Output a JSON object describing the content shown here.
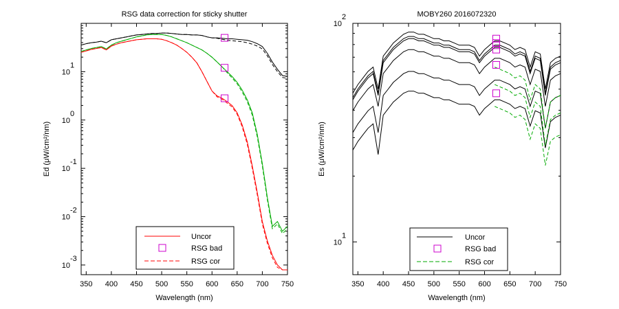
{
  "chart_data": [
    {
      "type": "line",
      "title": "RSG data correction for sticky shutter",
      "xlabel": "Wavelength (nm)",
      "ylabel": "Ed (μW/cm²/nm)",
      "xlim": [
        340,
        750
      ],
      "ylim_log10": [
        -3.2,
        2
      ],
      "y_scale": "log",
      "x_ticks": [
        "350",
        "400",
        "450",
        "500",
        "550",
        "600",
        "650",
        "700",
        "750"
      ],
      "y_tick_labels": [
        {
          "base": "10",
          "exp": "1"
        },
        {
          "base": "10",
          "exp": "0"
        },
        {
          "base": "10",
          "exp": "-1"
        },
        {
          "base": "10",
          "exp": "-2"
        },
        {
          "base": "10",
          "exp": "-3"
        }
      ],
      "legend": {
        "placement": "bottom-center",
        "entries": [
          {
            "label": "Uncor",
            "style": "solid",
            "color": "#ff0000"
          },
          {
            "label": "RSG bad",
            "style": "marker-square",
            "color": "#cc00cc"
          },
          {
            "label": "RSG cor",
            "style": "dashed",
            "color": "#ff0000"
          }
        ]
      },
      "x": [
        340,
        350,
        360,
        370,
        380,
        390,
        400,
        410,
        420,
        430,
        440,
        450,
        460,
        470,
        480,
        490,
        500,
        510,
        520,
        530,
        540,
        550,
        560,
        570,
        580,
        590,
        600,
        610,
        620,
        630,
        640,
        650,
        660,
        670,
        680,
        690,
        700,
        710,
        720,
        730,
        740,
        750
      ],
      "series": [
        {
          "color": "#000000",
          "style": "solid",
          "log10_values": [
            1.55,
            1.58,
            1.6,
            1.61,
            1.63,
            1.6,
            1.66,
            1.68,
            1.7,
            1.72,
            1.74,
            1.76,
            1.77,
            1.78,
            1.79,
            1.79,
            1.8,
            1.8,
            1.79,
            1.78,
            1.77,
            1.77,
            1.76,
            1.76,
            1.75,
            1.72,
            1.7,
            1.7,
            1.69,
            1.68,
            1.68,
            1.67,
            1.66,
            1.65,
            1.62,
            1.58,
            1.52,
            1.38,
            1.2,
            1.05,
            0.92,
            0.9
          ]
        },
        {
          "color": "#000000",
          "style": "dashed",
          "log10_values": [
            1.55,
            1.58,
            1.6,
            1.61,
            1.63,
            1.6,
            1.66,
            1.68,
            1.7,
            1.72,
            1.74,
            1.76,
            1.77,
            1.78,
            1.79,
            1.79,
            1.8,
            1.8,
            1.79,
            1.78,
            1.77,
            1.77,
            1.76,
            1.76,
            1.75,
            1.72,
            1.7,
            1.69,
            1.67,
            1.65,
            1.64,
            1.63,
            1.62,
            1.6,
            1.57,
            1.53,
            1.47,
            1.33,
            1.15,
            1.0,
            0.88,
            0.86
          ]
        },
        {
          "color": "#00aa00",
          "style": "solid",
          "log10_values": [
            1.42,
            1.45,
            1.48,
            1.5,
            1.52,
            1.47,
            1.55,
            1.6,
            1.63,
            1.66,
            1.69,
            1.72,
            1.74,
            1.76,
            1.77,
            1.77,
            1.77,
            1.75,
            1.72,
            1.68,
            1.64,
            1.6,
            1.55,
            1.5,
            1.45,
            1.38,
            1.3,
            1.2,
            1.1,
            1.0,
            0.9,
            0.78,
            0.62,
            0.42,
            0.15,
            -0.3,
            -0.9,
            -1.6,
            -2.2,
            -2.1,
            -2.3,
            -2.2
          ]
        },
        {
          "color": "#00aa00",
          "style": "dashed",
          "log10_values": [
            1.42,
            1.45,
            1.48,
            1.5,
            1.52,
            1.47,
            1.55,
            1.6,
            1.63,
            1.66,
            1.69,
            1.72,
            1.74,
            1.76,
            1.77,
            1.77,
            1.77,
            1.75,
            1.72,
            1.68,
            1.64,
            1.6,
            1.55,
            1.5,
            1.45,
            1.38,
            1.3,
            1.2,
            1.1,
            0.98,
            0.87,
            0.75,
            0.58,
            0.38,
            0.1,
            -0.35,
            -0.95,
            -1.65,
            -2.25,
            -2.15,
            -2.35,
            -2.25
          ]
        },
        {
          "color": "#ff0000",
          "style": "solid",
          "log10_values": [
            1.4,
            1.43,
            1.46,
            1.48,
            1.5,
            1.45,
            1.53,
            1.57,
            1.6,
            1.62,
            1.64,
            1.66,
            1.67,
            1.68,
            1.68,
            1.68,
            1.67,
            1.64,
            1.6,
            1.55,
            1.48,
            1.4,
            1.3,
            1.18,
            1.0,
            0.8,
            0.6,
            0.5,
            0.45,
            0.38,
            0.3,
            0.15,
            -0.1,
            -0.45,
            -0.95,
            -1.5,
            -2.1,
            -2.5,
            -2.8,
            -3.0,
            -3.1,
            -3.1
          ]
        },
        {
          "color": "#ff0000",
          "style": "dashed",
          "log10_values": [
            1.4,
            1.43,
            1.46,
            1.48,
            1.5,
            1.45,
            1.53,
            1.57,
            1.6,
            1.62,
            1.64,
            1.66,
            1.67,
            1.68,
            1.68,
            1.68,
            1.67,
            1.64,
            1.6,
            1.55,
            1.48,
            1.4,
            1.3,
            1.18,
            1.0,
            0.8,
            0.6,
            0.48,
            0.43,
            0.35,
            0.27,
            0.12,
            -0.14,
            -0.5,
            -1.0,
            -1.55,
            -2.15,
            -2.55,
            -2.85,
            -3.05,
            -3.1,
            -3.1
          ]
        }
      ],
      "markers": [
        {
          "x": 625,
          "log10_y": 1.7
        },
        {
          "x": 625,
          "log10_y": 1.08
        },
        {
          "x": 625,
          "log10_y": 0.45
        }
      ]
    },
    {
      "type": "line",
      "title": "MOBY260  2016072320",
      "xlabel": "Wavelength (nm)",
      "ylabel": "Es (μW/cm²/nm)",
      "xlim": [
        340,
        750
      ],
      "ylim_log10": [
        0.85,
        2
      ],
      "y_scale": "log",
      "x_ticks": [
        "350",
        "400",
        "450",
        "500",
        "550",
        "600",
        "650",
        "700",
        "750"
      ],
      "y_tick_labels": [
        {
          "base": "10",
          "exp": "2"
        },
        {
          "base": "10",
          "exp": "1"
        }
      ],
      "legend": {
        "placement": "bottom-center",
        "entries": [
          {
            "label": "Uncor",
            "style": "solid",
            "color": "#000000"
          },
          {
            "label": "RSG bad",
            "style": "marker-square",
            "color": "#cc00cc"
          },
          {
            "label": "RSG cor",
            "style": "dashed",
            "color": "#00aa00"
          }
        ]
      },
      "x": [
        340,
        350,
        360,
        370,
        380,
        390,
        400,
        410,
        420,
        430,
        440,
        450,
        460,
        470,
        480,
        490,
        500,
        510,
        520,
        530,
        540,
        550,
        560,
        570,
        580,
        590,
        600,
        610,
        620,
        630,
        640,
        650,
        660,
        670,
        680,
        690,
        700,
        710,
        720,
        730,
        740,
        750
      ],
      "series": [
        {
          "color": "#000000",
          "style": "solid",
          "log10_values": [
            1.68,
            1.72,
            1.75,
            1.78,
            1.8,
            1.7,
            1.85,
            1.88,
            1.91,
            1.93,
            1.95,
            1.96,
            1.96,
            1.95,
            1.95,
            1.94,
            1.93,
            1.93,
            1.92,
            1.92,
            1.91,
            1.9,
            1.9,
            1.9,
            1.89,
            1.85,
            1.88,
            1.9,
            1.92,
            1.92,
            1.91,
            1.9,
            1.88,
            1.89,
            1.88,
            1.8,
            1.87,
            1.86,
            1.7,
            1.82,
            1.84,
            1.85
          ]
        },
        {
          "color": "#000000",
          "style": "solid",
          "log10_values": [
            1.66,
            1.7,
            1.73,
            1.76,
            1.78,
            1.68,
            1.83,
            1.86,
            1.89,
            1.91,
            1.93,
            1.94,
            1.94,
            1.93,
            1.93,
            1.92,
            1.91,
            1.91,
            1.9,
            1.9,
            1.89,
            1.88,
            1.88,
            1.88,
            1.87,
            1.83,
            1.86,
            1.88,
            1.9,
            1.9,
            1.89,
            1.88,
            1.86,
            1.87,
            1.86,
            1.78,
            1.85,
            1.84,
            1.68,
            1.8,
            1.82,
            1.83
          ]
        },
        {
          "color": "#000000",
          "style": "solid",
          "log10_values": [
            1.65,
            1.69,
            1.72,
            1.75,
            1.77,
            1.67,
            1.82,
            1.85,
            1.88,
            1.9,
            1.92,
            1.93,
            1.93,
            1.92,
            1.92,
            1.91,
            1.9,
            1.9,
            1.89,
            1.89,
            1.88,
            1.87,
            1.87,
            1.87,
            1.86,
            1.82,
            1.85,
            1.87,
            1.89,
            1.89,
            1.88,
            1.87,
            1.85,
            1.86,
            1.85,
            1.77,
            1.84,
            1.83,
            1.67,
            1.79,
            1.81,
            1.82
          ]
        },
        {
          "color": "#000000",
          "style": "solid",
          "log10_values": [
            1.6,
            1.64,
            1.67,
            1.7,
            1.72,
            1.62,
            1.77,
            1.8,
            1.83,
            1.85,
            1.87,
            1.88,
            1.88,
            1.87,
            1.87,
            1.86,
            1.85,
            1.85,
            1.84,
            1.84,
            1.83,
            1.82,
            1.82,
            1.82,
            1.81,
            1.77,
            1.8,
            1.82,
            1.84,
            1.84,
            1.83,
            1.82,
            1.8,
            1.81,
            1.8,
            1.72,
            1.79,
            1.78,
            1.62,
            1.74,
            1.76,
            1.77
          ]
        },
        {
          "color": "#000000",
          "style": "solid",
          "log10_values": [
            1.5,
            1.54,
            1.57,
            1.6,
            1.62,
            1.5,
            1.67,
            1.7,
            1.73,
            1.75,
            1.77,
            1.78,
            1.78,
            1.77,
            1.77,
            1.76,
            1.75,
            1.75,
            1.74,
            1.74,
            1.73,
            1.72,
            1.72,
            1.72,
            1.71,
            1.67,
            1.7,
            1.72,
            1.74,
            1.74,
            1.73,
            1.72,
            1.7,
            1.71,
            1.7,
            1.62,
            1.69,
            1.68,
            1.52,
            1.64,
            1.66,
            1.67
          ]
        },
        {
          "color": "#000000",
          "style": "solid",
          "log10_values": [
            1.42,
            1.46,
            1.49,
            1.52,
            1.54,
            1.4,
            1.58,
            1.61,
            1.64,
            1.66,
            1.68,
            1.69,
            1.69,
            1.68,
            1.68,
            1.67,
            1.66,
            1.66,
            1.65,
            1.65,
            1.64,
            1.63,
            1.63,
            1.63,
            1.62,
            1.58,
            1.61,
            1.63,
            1.65,
            1.65,
            1.64,
            1.63,
            1.61,
            1.62,
            1.61,
            1.53,
            1.6,
            1.59,
            1.43,
            1.55,
            1.57,
            1.58
          ]
        },
        {
          "color": "#00aa00",
          "style": "dashed",
          "log10_values": [
            null,
            null,
            null,
            null,
            null,
            null,
            null,
            null,
            null,
            null,
            null,
            null,
            null,
            null,
            null,
            null,
            null,
            null,
            null,
            null,
            null,
            null,
            null,
            null,
            null,
            null,
            null,
            null,
            1.8,
            1.79,
            1.78,
            1.77,
            1.75,
            1.76,
            1.74,
            1.65,
            1.72,
            1.7,
            1.52,
            1.64,
            1.66,
            1.67
          ]
        },
        {
          "color": "#00aa00",
          "style": "dashed",
          "log10_values": [
            null,
            null,
            null,
            null,
            null,
            null,
            null,
            null,
            null,
            null,
            null,
            null,
            null,
            null,
            null,
            null,
            null,
            null,
            null,
            null,
            null,
            null,
            null,
            null,
            null,
            null,
            null,
            null,
            1.72,
            1.71,
            1.7,
            1.69,
            1.67,
            1.68,
            1.66,
            1.57,
            1.64,
            1.62,
            1.44,
            1.56,
            1.58,
            1.59
          ]
        },
        {
          "color": "#00aa00",
          "style": "dashed",
          "log10_values": [
            null,
            null,
            null,
            null,
            null,
            null,
            null,
            null,
            null,
            null,
            null,
            null,
            null,
            null,
            null,
            null,
            null,
            null,
            null,
            null,
            null,
            null,
            null,
            null,
            null,
            null,
            null,
            null,
            1.62,
            1.61,
            1.6,
            1.59,
            1.57,
            1.58,
            1.56,
            1.47,
            1.54,
            1.52,
            1.35,
            1.46,
            1.48,
            1.49
          ]
        }
      ],
      "markers": [
        {
          "x": 623,
          "log10_y": 1.93
        },
        {
          "x": 623,
          "log10_y": 1.91
        },
        {
          "x": 623,
          "log10_y": 1.9
        },
        {
          "x": 623,
          "log10_y": 1.88
        },
        {
          "x": 623,
          "log10_y": 1.81
        },
        {
          "x": 623,
          "log10_y": 1.68
        }
      ]
    }
  ]
}
